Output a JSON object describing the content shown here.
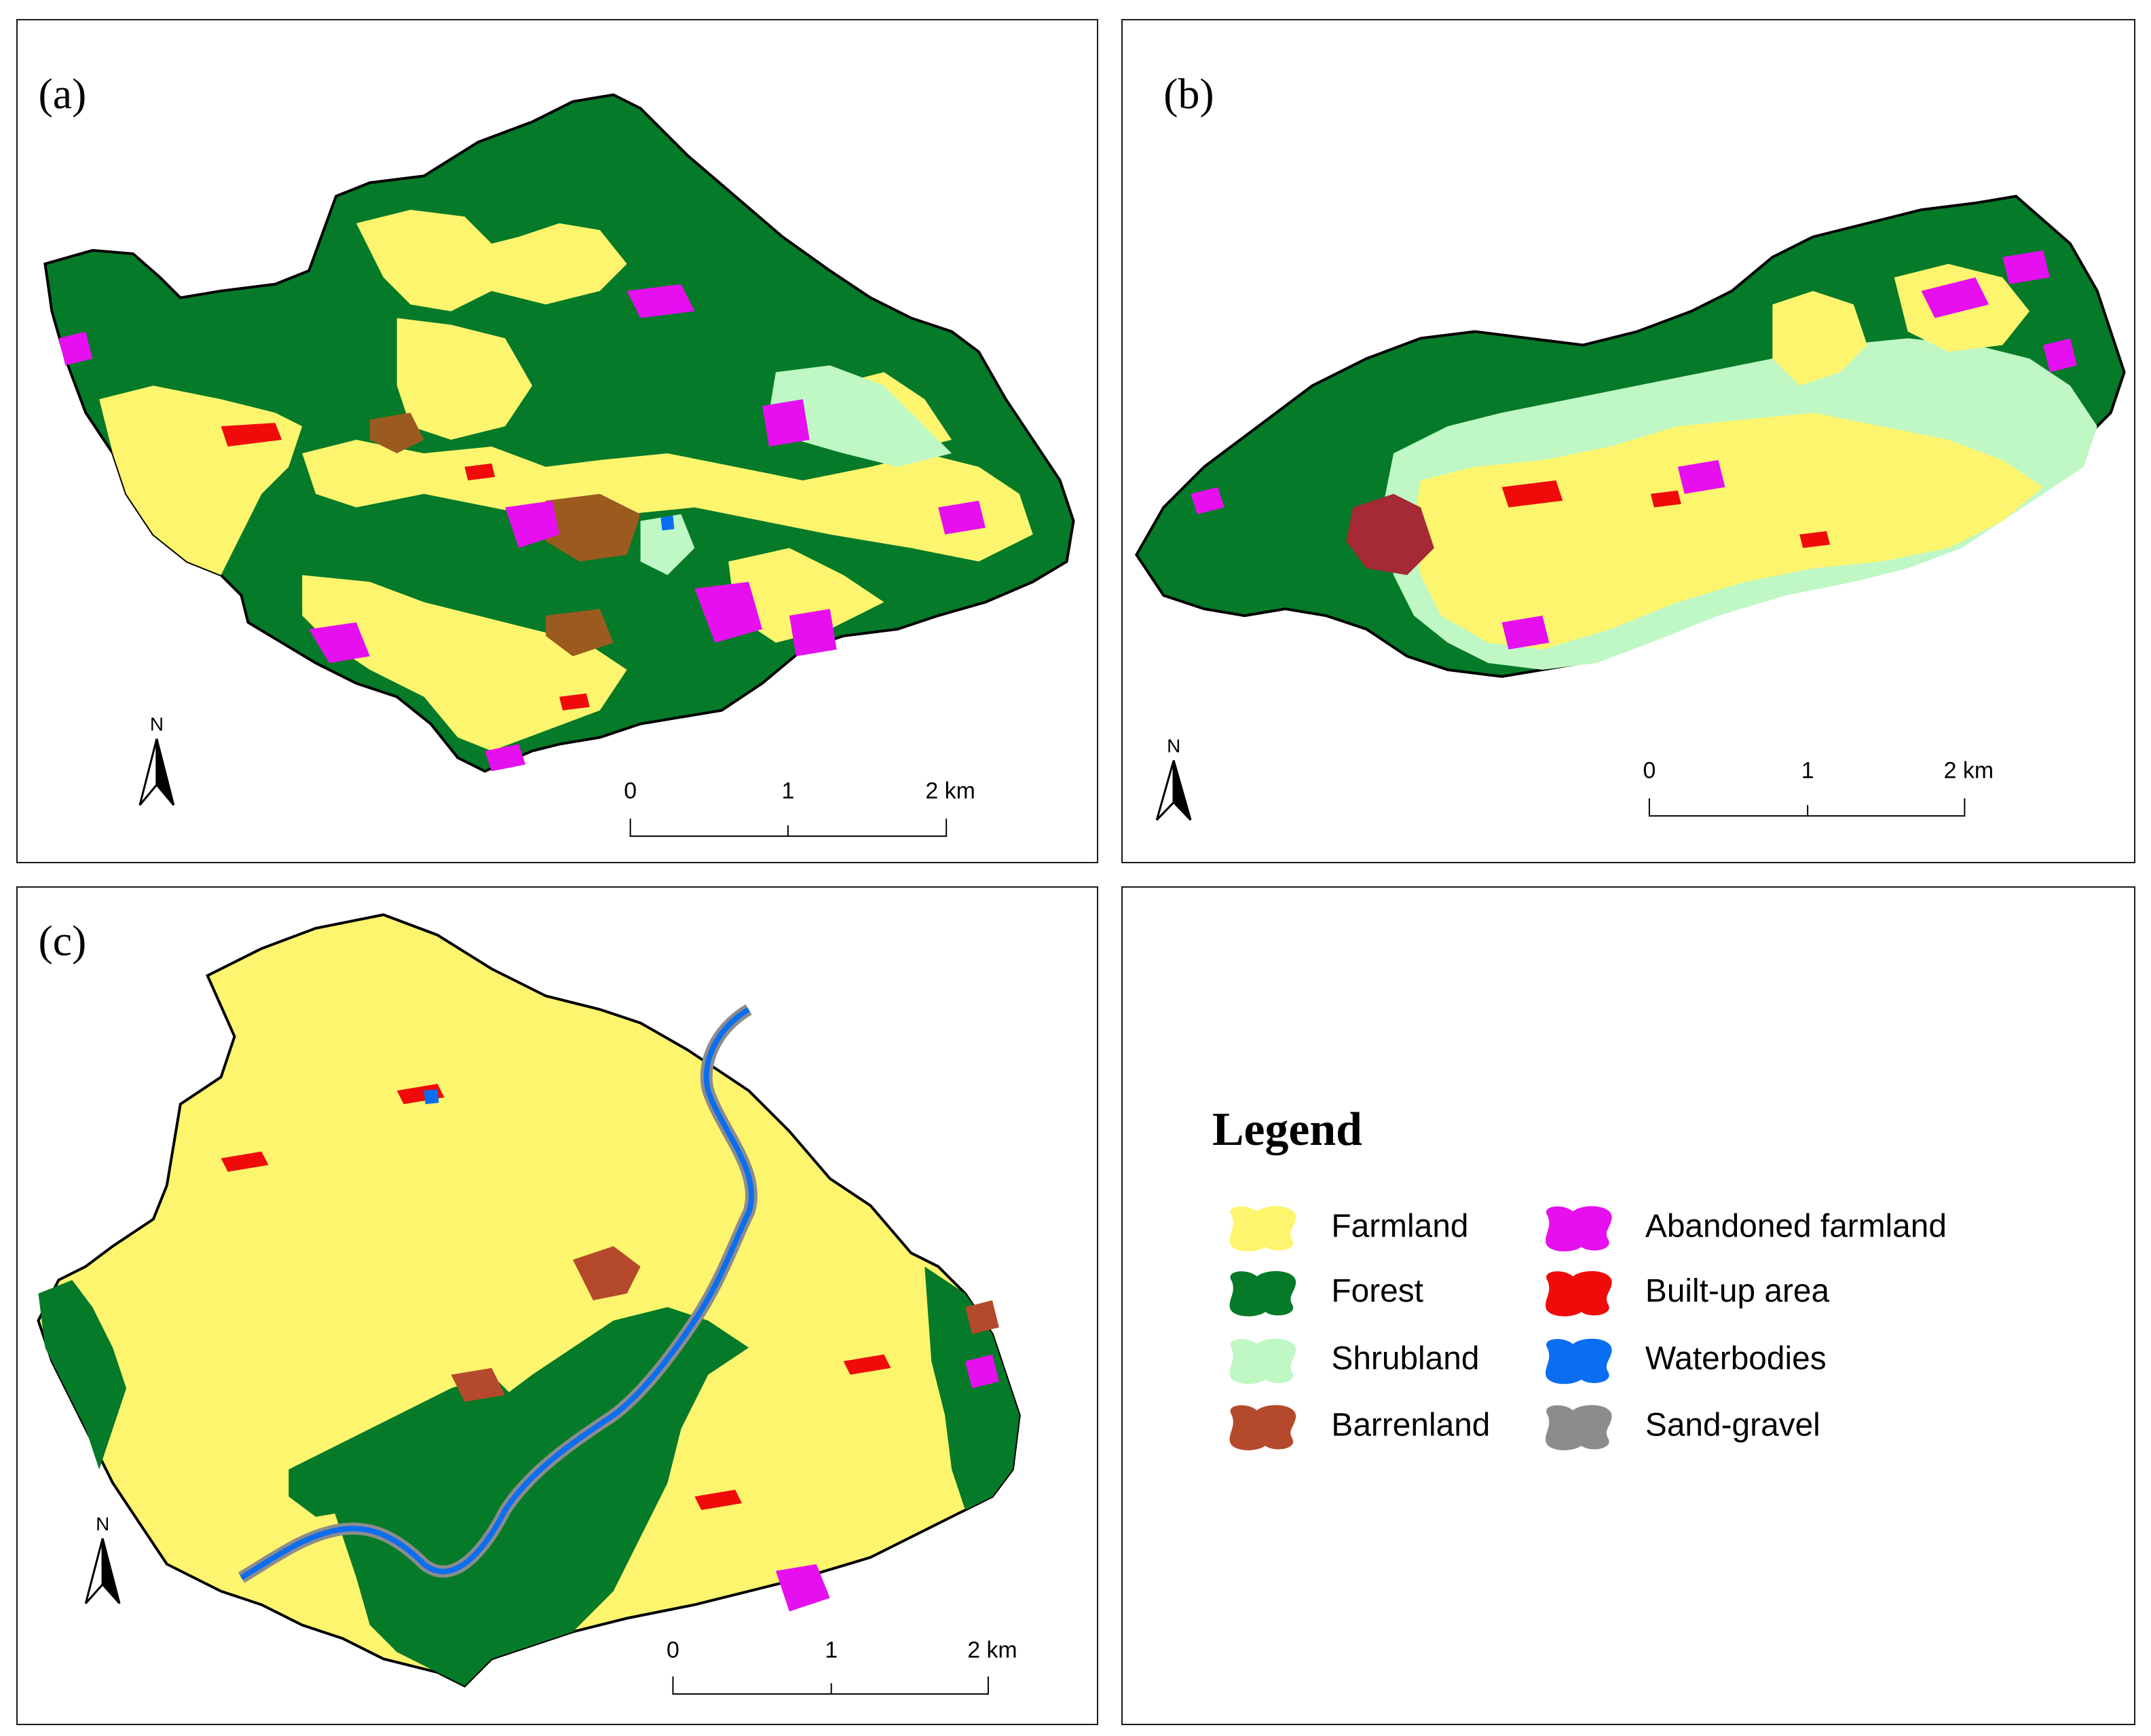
{
  "panels": {
    "a": {
      "label": "(a)"
    },
    "b": {
      "label": "(b)"
    },
    "c": {
      "label": "(c)"
    }
  },
  "north_arrow": {
    "label": "N"
  },
  "scale_bar": {
    "ticks": [
      "0",
      "1",
      "2 km"
    ]
  },
  "legend": {
    "title": "Legend",
    "items": [
      {
        "label": "Farmland",
        "color": "#fdf56e"
      },
      {
        "label": "Forest",
        "color": "#057a28"
      },
      {
        "label": "Shrubland",
        "color": "#bff8c4"
      },
      {
        "label": "Barrenland",
        "color": "#b5492c"
      },
      {
        "label": "Abandoned farmland",
        "color": "#e60ff0"
      },
      {
        "label": "Built-up area",
        "color": "#f00a0a"
      },
      {
        "label": "Waterbodies",
        "color": "#0a6ef0"
      },
      {
        "label": "Sand-gravel",
        "color": "#8c8c8c"
      }
    ]
  },
  "colors": {
    "farmland": "#fdf56e",
    "forest": "#057a28",
    "shrubland": "#bff8c4",
    "barrenland": "#9b5a1e",
    "barrenland_b": "#a52a35",
    "barrenland_c": "#b5492c",
    "abandoned": "#e60ff0",
    "builtup": "#f00a0a",
    "water": "#0a6ef0",
    "sand": "#8c8c8c"
  }
}
